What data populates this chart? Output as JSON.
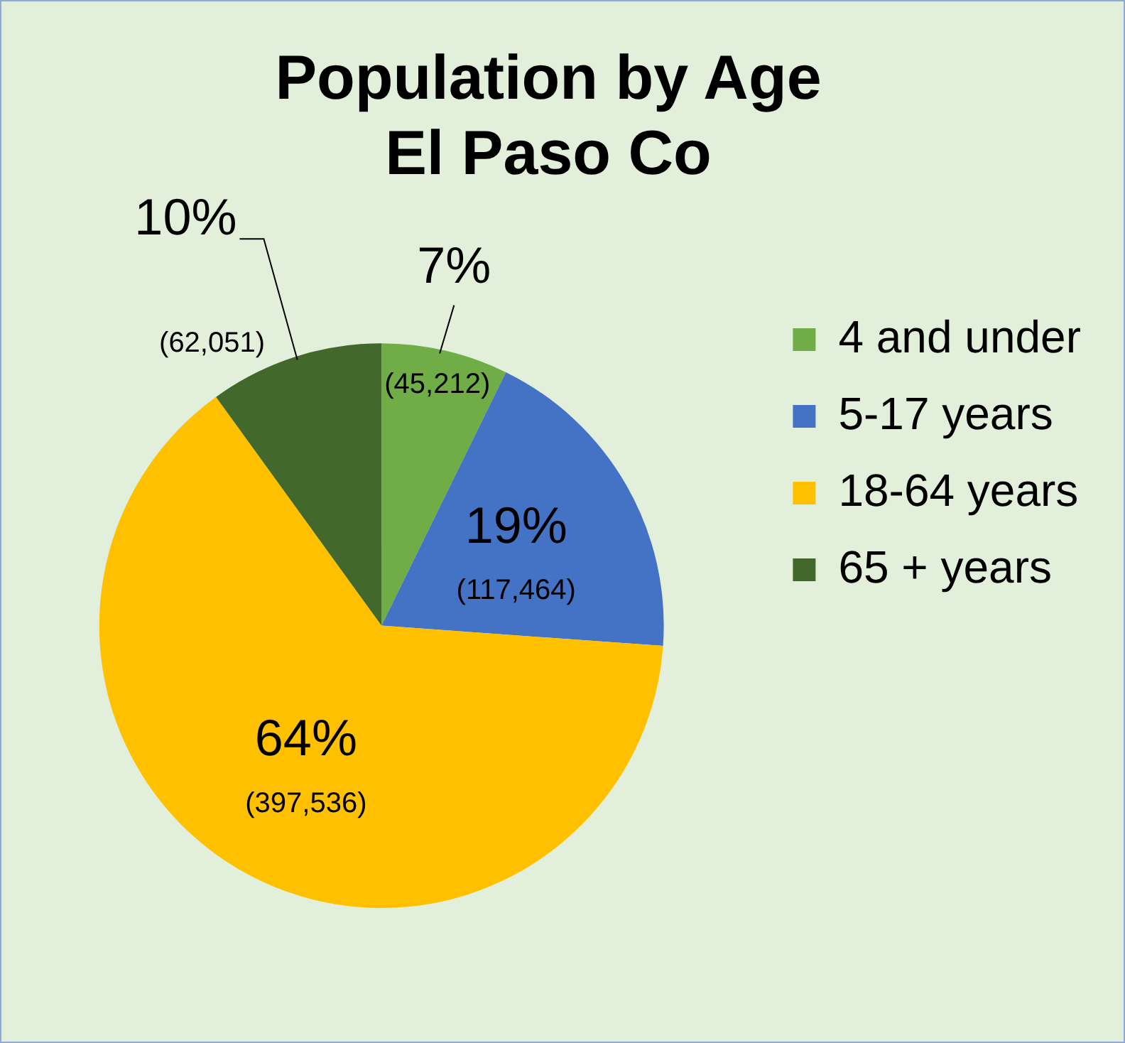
{
  "chart_data": {
    "type": "pie",
    "title": "Population by Age\nEl Paso Co",
    "categories": [
      "4 and under",
      "5-17 years",
      "18-64 years",
      "65 + years"
    ],
    "values": [
      45212,
      117464,
      397536,
      62051
    ],
    "colors": [
      "#70ad47",
      "#4472c4",
      "#ffc000",
      "#43682b"
    ],
    "value_labels": [
      "7%\n(45,212)",
      "19%\n(117,464)",
      "64%\n(397,536)",
      "10%\n(62,051)"
    ],
    "legend": "right"
  }
}
